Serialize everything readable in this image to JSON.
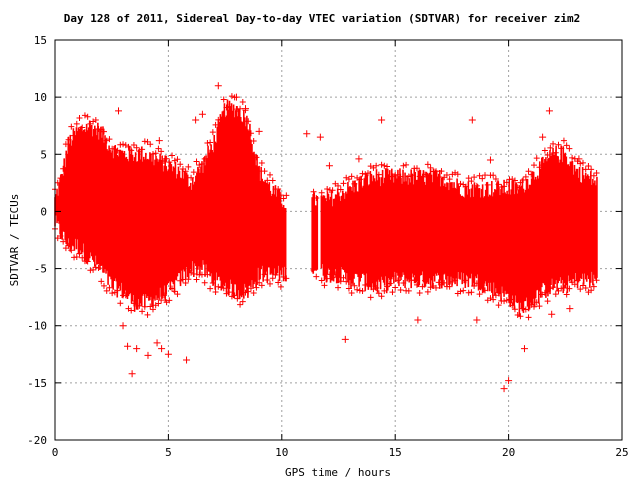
{
  "chart_data": {
    "type": "scatter",
    "title": "Day 128 of 2011, Sidereal Day-to-day VTEC variation (SDTVAR) for receiver zim2",
    "xlabel": "GPS time / hours",
    "ylabel": "SDTVAR / TECUs",
    "xlim": [
      0,
      25
    ],
    "ylim": [
      -20,
      15
    ],
    "x_ticks": [
      0,
      5,
      10,
      15,
      20,
      25
    ],
    "x_tick_labels": [
      "0",
      "5",
      "10",
      "15",
      "20",
      "25"
    ],
    "y_ticks": [
      -20,
      -15,
      -10,
      -5,
      0,
      5,
      10,
      15
    ],
    "y_tick_labels": [
      "-20",
      "-15",
      "-10",
      "-5",
      "0",
      "5",
      "10",
      "15"
    ],
    "grid": true,
    "marker": "+",
    "color": "#ff0000",
    "envelope": {
      "x": [
        0.0,
        0.3,
        0.6,
        1.0,
        1.5,
        2.0,
        2.5,
        3.0,
        3.5,
        4.0,
        4.5,
        5.0,
        5.5,
        6.0,
        6.5,
        7.0,
        7.5,
        8.0,
        8.5,
        9.0,
        9.5,
        10.0,
        10.5,
        11.0,
        11.5,
        12.0,
        12.5,
        13.0,
        13.5,
        14.0,
        14.5,
        15.0,
        15.5,
        16.0,
        16.5,
        17.0,
        17.5,
        18.0,
        18.5,
        19.0,
        19.5,
        20.0,
        20.5,
        21.0,
        21.5,
        22.0,
        22.5,
        23.0,
        23.5,
        23.9
      ],
      "upper": [
        1.0,
        3.0,
        6.0,
        7.0,
        7.5,
        7.0,
        5.5,
        5.0,
        5.0,
        5.0,
        4.5,
        4.0,
        3.5,
        2.5,
        4.0,
        6.0,
        9.0,
        9.0,
        8.0,
        3.5,
        2.0,
        1.0,
        0.5,
        0.5,
        1.0,
        1.0,
        1.5,
        2.0,
        2.5,
        3.0,
        3.0,
        3.0,
        3.0,
        3.0,
        3.0,
        3.0,
        2.5,
        2.0,
        2.0,
        2.0,
        2.0,
        2.0,
        2.0,
        3.0,
        4.0,
        5.0,
        5.0,
        3.5,
        3.0,
        2.5
      ],
      "lower": [
        -1.0,
        -2.0,
        -3.0,
        -3.0,
        -4.0,
        -5.0,
        -6.5,
        -7.0,
        -8.0,
        -8.0,
        -7.5,
        -7.0,
        -6.0,
        -5.0,
        -5.0,
        -6.0,
        -6.5,
        -7.0,
        -7.0,
        -5.5,
        -5.5,
        -5.5,
        -5.0,
        -5.0,
        -5.0,
        -5.5,
        -5.5,
        -6.0,
        -6.0,
        -6.5,
        -6.5,
        -6.0,
        -6.0,
        -6.0,
        -6.0,
        -6.0,
        -6.0,
        -6.0,
        -6.0,
        -6.5,
        -7.0,
        -7.5,
        -8.5,
        -8.0,
        -7.0,
        -6.5,
        -6.5,
        -6.0,
        -6.0,
        -6.0
      ]
    },
    "gaps": [
      [
        10.2,
        11.3
      ],
      [
        11.6,
        11.7
      ]
    ],
    "outliers": [
      {
        "x": 2.8,
        "y": 8.8
      },
      {
        "x": 3.0,
        "y": -10.0
      },
      {
        "x": 3.2,
        "y": -11.8
      },
      {
        "x": 3.4,
        "y": -14.2
      },
      {
        "x": 3.6,
        "y": -12.0
      },
      {
        "x": 4.1,
        "y": -12.6
      },
      {
        "x": 4.5,
        "y": -11.5
      },
      {
        "x": 4.6,
        "y": 6.2
      },
      {
        "x": 4.7,
        "y": -12.0
      },
      {
        "x": 5.0,
        "y": -12.5
      },
      {
        "x": 5.8,
        "y": -13.0
      },
      {
        "x": 6.2,
        "y": 8.0
      },
      {
        "x": 6.5,
        "y": 8.5
      },
      {
        "x": 7.2,
        "y": 11.0
      },
      {
        "x": 8.0,
        "y": 10.0
      },
      {
        "x": 8.4,
        "y": 9.0
      },
      {
        "x": 9.0,
        "y": 7.0
      },
      {
        "x": 11.1,
        "y": 6.8
      },
      {
        "x": 11.7,
        "y": 6.5
      },
      {
        "x": 12.1,
        "y": 4.0
      },
      {
        "x": 12.8,
        "y": -11.2
      },
      {
        "x": 13.4,
        "y": 4.6
      },
      {
        "x": 14.4,
        "y": 8.0
      },
      {
        "x": 16.0,
        "y": -9.5
      },
      {
        "x": 18.4,
        "y": 8.0
      },
      {
        "x": 18.6,
        "y": -9.5
      },
      {
        "x": 19.2,
        "y": 4.5
      },
      {
        "x": 19.8,
        "y": -15.5
      },
      {
        "x": 20.0,
        "y": -14.8
      },
      {
        "x": 20.7,
        "y": -12.0
      },
      {
        "x": 21.5,
        "y": 6.5
      },
      {
        "x": 21.8,
        "y": 8.8
      },
      {
        "x": 21.9,
        "y": -9.0
      },
      {
        "x": 23.1,
        "y": 4.6
      },
      {
        "x": 22.7,
        "y": -8.5
      }
    ]
  }
}
